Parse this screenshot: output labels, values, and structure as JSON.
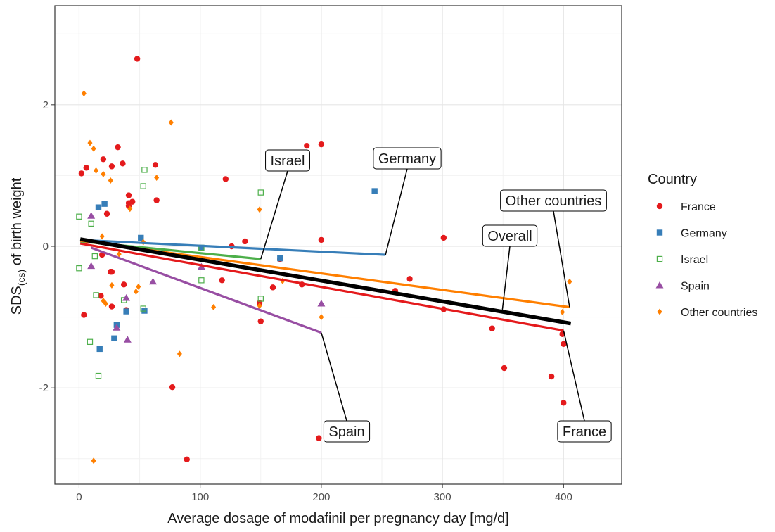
{
  "chart_data": {
    "type": "scatter",
    "xlabel": "Average dosage of modafinil per pregnancy day [mg/d]",
    "ylabel": [
      "SDS",
      "(cs)",
      " of birth weight"
    ],
    "xlim": [
      -20,
      448
    ],
    "ylim": [
      -3.36,
      3.4
    ],
    "xticks": [
      0,
      100,
      200,
      300,
      400
    ],
    "yticks": [
      -2,
      0,
      2
    ],
    "minor_xticks": [
      50,
      150,
      250,
      350
    ],
    "minor_yticks": [
      -3,
      -1,
      1,
      3
    ],
    "grid": true,
    "legend_title": "Country",
    "legend_position": "right",
    "series": [
      {
        "name": "France",
        "color": "#e41a1c",
        "marker": "circle",
        "x": [
          2,
          6,
          4,
          20,
          23,
          27,
          26,
          27,
          27,
          32,
          36,
          37,
          39,
          41,
          41,
          41,
          44,
          48,
          63,
          64,
          77,
          89,
          18,
          19,
          118,
          121,
          126,
          137,
          150,
          149,
          160,
          166,
          184,
          188,
          200,
          200,
          198,
          273,
          261,
          301,
          301,
          341,
          351,
          390,
          399,
          400,
          400
        ],
        "values": [
          1.03,
          1.11,
          -0.97,
          1.23,
          0.46,
          1.13,
          -0.36,
          -0.36,
          -0.85,
          1.4,
          1.17,
          -0.54,
          -0.9,
          0.72,
          0.61,
          0.57,
          0.63,
          2.65,
          1.15,
          0.65,
          -1.99,
          -3.01,
          -0.7,
          -0.12,
          -0.48,
          0.95,
          0,
          0.07,
          -1.06,
          -0.8,
          -0.58,
          -0.18,
          -0.54,
          1.42,
          1.44,
          0.09,
          -2.71,
          -0.46,
          -0.63,
          0.12,
          -0.89,
          -1.16,
          -1.72,
          -1.84,
          -1.24,
          -1.38,
          -2.21
        ],
        "trend": {
          "x": [
            1,
            400
          ],
          "values": [
            0.04,
            -1.19
          ]
        }
      },
      {
        "name": "Germany",
        "color": "#377eb8",
        "marker": "square",
        "x": [
          16,
          21,
          17,
          29,
          31,
          39,
          51,
          54,
          101,
          166,
          244
        ],
        "values": [
          0.55,
          0.6,
          -1.45,
          -1.3,
          -1.11,
          -0.92,
          0.12,
          -0.91,
          -0.02,
          -0.17,
          0.78
        ],
        "trend": {
          "x": [
            1,
            253
          ],
          "values": [
            0.09,
            -0.12
          ]
        }
      },
      {
        "name": "Israel",
        "color": "#4daf4a",
        "marker": "open-square",
        "x": [
          0,
          0,
          10,
          9,
          13,
          14,
          16,
          37,
          53,
          54,
          53,
          101,
          101,
          150,
          150
        ],
        "values": [
          0.42,
          -0.31,
          0.32,
          -1.35,
          -0.14,
          -0.69,
          -1.83,
          -0.76,
          -0.88,
          1.08,
          0.85,
          -0.02,
          -0.48,
          0.76,
          -0.74
        ],
        "trend": {
          "x": [
            1,
            150
          ],
          "values": [
            0.07,
            -0.18
          ]
        }
      },
      {
        "name": "Spain",
        "color": "#984ea3",
        "marker": "triangle",
        "x": [
          10,
          10,
          31,
          39,
          40,
          61,
          101,
          200
        ],
        "values": [
          0.43,
          -0.28,
          -1.15,
          -0.73,
          -1.32,
          -0.5,
          -0.29,
          -0.81
        ],
        "trend": {
          "x": [
            10,
            200
          ],
          "values": [
            -0.02,
            -1.22
          ]
        }
      },
      {
        "name": "Other countries",
        "color": "#ff7f00",
        "marker": "diamond",
        "x": [
          4,
          9,
          12,
          12,
          14,
          20,
          19,
          20,
          22,
          26,
          27,
          33,
          42,
          47,
          49,
          53,
          64,
          76,
          83,
          111,
          149,
          149,
          168,
          200,
          399,
          405
        ],
        "values": [
          2.16,
          1.46,
          1.38,
          -3.03,
          1.07,
          1.02,
          0.14,
          -0.77,
          -0.81,
          0.93,
          -0.55,
          -0.11,
          0.53,
          -0.64,
          -0.57,
          0.06,
          0.97,
          1.75,
          -1.52,
          -0.86,
          0.52,
          -0.84,
          -0.49,
          -1.0,
          -0.93,
          -0.5
        ],
        "trend": {
          "x": [
            1,
            405
          ],
          "values": [
            0.08,
            -0.86
          ]
        }
      }
    ],
    "overall_trend": {
      "name": "Overall",
      "color": "#000000",
      "x": [
        1,
        406
      ],
      "values": [
        0.1,
        -1.09
      ]
    }
  }
}
